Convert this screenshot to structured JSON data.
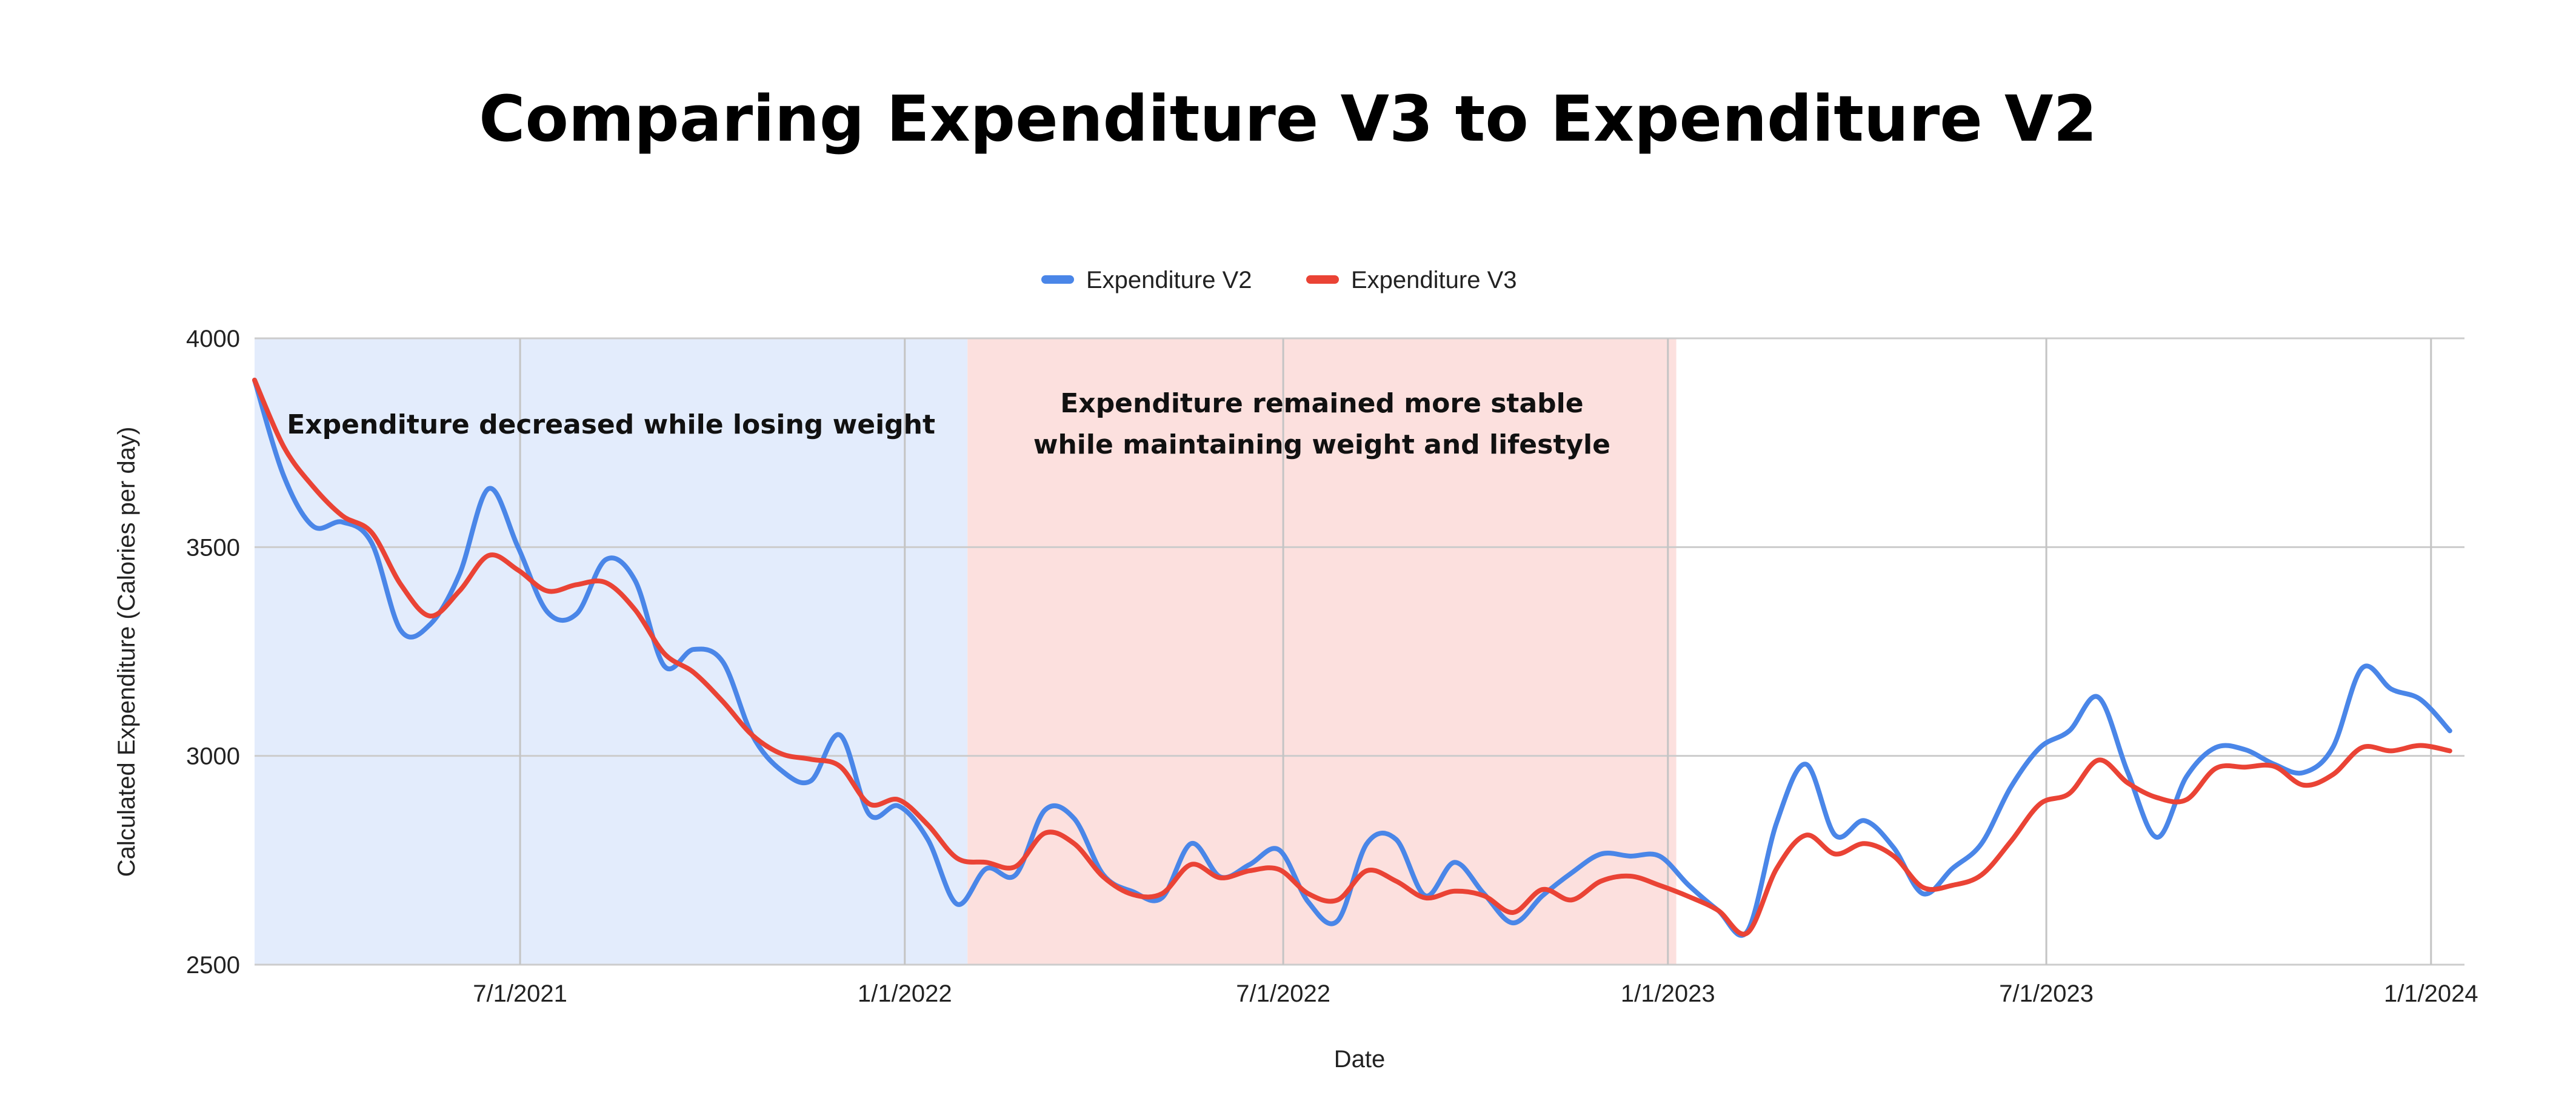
{
  "chart_data": {
    "type": "line",
    "title": "Comparing Expenditure V3 to Expenditure V2",
    "xlabel": "Date",
    "ylabel": "Calculated Expenditure (Calories per day)",
    "ylim": [
      2500,
      4000
    ],
    "xlim": [
      "2021-02-24",
      "2024-01-17"
    ],
    "y_ticks": [
      2500,
      3000,
      3500,
      4000
    ],
    "x_ticks": [
      {
        "date": "2021-07-01",
        "label": "7/1/2021"
      },
      {
        "date": "2022-01-01",
        "label": "1/1/2022"
      },
      {
        "date": "2022-07-01",
        "label": "7/1/2022"
      },
      {
        "date": "2023-01-01",
        "label": "1/1/2023"
      },
      {
        "date": "2023-07-01",
        "label": "7/1/2023"
      },
      {
        "date": "2024-01-01",
        "label": "1/1/2024"
      }
    ],
    "grid": true,
    "legend_position": "top",
    "regions": [
      {
        "start": "2021-02-24",
        "end": "2022-01-31",
        "color": "#e3ecfc",
        "annotation": [
          "Expenditure decreased while losing weight"
        ]
      },
      {
        "start": "2022-01-31",
        "end": "2023-01-05",
        "color": "#fce0de",
        "annotation": [
          "Expenditure remained more stable",
          "while maintaining weight and lifestyle"
        ]
      }
    ],
    "x": [
      "2021-02-24",
      "2021-03-10",
      "2021-03-24",
      "2021-04-07",
      "2021-04-21",
      "2021-05-05",
      "2021-05-19",
      "2021-06-02",
      "2021-06-16",
      "2021-06-30",
      "2021-07-14",
      "2021-07-28",
      "2021-08-11",
      "2021-08-25",
      "2021-09-08",
      "2021-09-22",
      "2021-10-06",
      "2021-10-20",
      "2021-11-03",
      "2021-11-17",
      "2021-12-01",
      "2021-12-15",
      "2021-12-29",
      "2022-01-12",
      "2022-01-26",
      "2022-02-09",
      "2022-02-23",
      "2022-03-09",
      "2022-03-23",
      "2022-04-06",
      "2022-04-20",
      "2022-05-04",
      "2022-05-18",
      "2022-06-01",
      "2022-06-15",
      "2022-06-29",
      "2022-07-13",
      "2022-07-27",
      "2022-08-10",
      "2022-08-24",
      "2022-09-07",
      "2022-09-21",
      "2022-10-05",
      "2022-10-19",
      "2022-11-02",
      "2022-11-16",
      "2022-11-30",
      "2022-12-14",
      "2022-12-28",
      "2023-01-11",
      "2023-01-25",
      "2023-02-08",
      "2023-02-22",
      "2023-03-08",
      "2023-03-22",
      "2023-04-05",
      "2023-04-19",
      "2023-05-03",
      "2023-05-17",
      "2023-05-31",
      "2023-06-14",
      "2023-06-28",
      "2023-07-12",
      "2023-07-26",
      "2023-08-09",
      "2023-08-23",
      "2023-09-06",
      "2023-09-20",
      "2023-10-04",
      "2023-10-18",
      "2023-11-01",
      "2023-11-15",
      "2023-11-29",
      "2023-12-13",
      "2023-12-27",
      "2024-01-10"
    ],
    "series": [
      {
        "name": "Expenditure V2",
        "color": "#4a86e8",
        "values": [
          3900,
          3670,
          3550,
          3560,
          3510,
          3300,
          3315,
          3435,
          3640,
          3500,
          3345,
          3340,
          3470,
          3420,
          3215,
          3255,
          3225,
          3050,
          2965,
          2940,
          3050,
          2860,
          2880,
          2800,
          2645,
          2730,
          2715,
          2870,
          2850,
          2715,
          2675,
          2660,
          2790,
          2710,
          2740,
          2775,
          2650,
          2605,
          2790,
          2800,
          2665,
          2745,
          2670,
          2600,
          2665,
          2720,
          2765,
          2760,
          2760,
          2690,
          2630,
          2580,
          2840,
          2980,
          2810,
          2845,
          2780,
          2670,
          2730,
          2790,
          2925,
          3020,
          3060,
          3140,
          2960,
          2805,
          2950,
          3020,
          3015,
          2980,
          2960,
          3020,
          3210,
          3160,
          3135,
          3060
        ]
      },
      {
        "name": "Expenditure V3",
        "color": "#ea4335",
        "values": [
          3900,
          3740,
          3645,
          3575,
          3535,
          3410,
          3335,
          3395,
          3480,
          3445,
          3395,
          3410,
          3415,
          3350,
          3245,
          3200,
          3130,
          3050,
          3005,
          2992,
          2975,
          2885,
          2895,
          2835,
          2755,
          2745,
          2735,
          2815,
          2790,
          2710,
          2668,
          2670,
          2740,
          2708,
          2725,
          2728,
          2670,
          2655,
          2725,
          2700,
          2660,
          2676,
          2665,
          2625,
          2680,
          2655,
          2700,
          2712,
          2690,
          2663,
          2630,
          2576,
          2730,
          2810,
          2765,
          2790,
          2760,
          2685,
          2690,
          2715,
          2795,
          2885,
          2910,
          2990,
          2935,
          2900,
          2895,
          2970,
          2973,
          2975,
          2930,
          2955,
          3020,
          3012,
          3025,
          3012
        ]
      }
    ]
  }
}
